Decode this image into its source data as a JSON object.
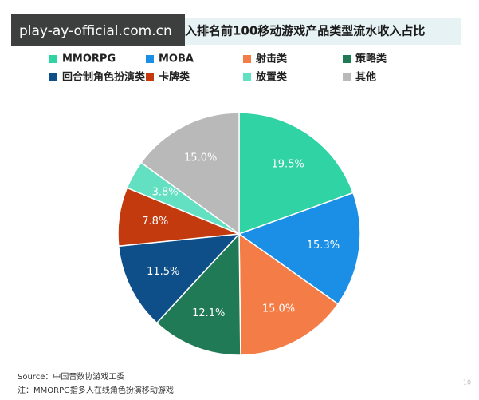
{
  "watermark": "play-ay-official.com.cn",
  "chart_data": {
    "type": "pie",
    "title": "入排名前100移动游戏产品类型流水收入占比",
    "categories": [
      "MMORPG",
      "MOBA",
      "射击类",
      "策略类",
      "回合制角色扮演类",
      "卡牌类",
      "放置类",
      "其他"
    ],
    "values": [
      19.5,
      15.3,
      15.0,
      12.1,
      11.5,
      7.8,
      3.8,
      15.0
    ],
    "value_labels": [
      "19.5%",
      "15.3%",
      "15.0%",
      "12.1%",
      "11.5%",
      "7.8%",
      "3.8%",
      "15.0%"
    ],
    "colors": [
      "#2fd3a4",
      "#1b8ee6",
      "#f47c46",
      "#1f7a55",
      "#0e4f89",
      "#c23a0e",
      "#63e0c2",
      "#b9b9b9"
    ],
    "legend_position": "top",
    "notes": [
      "Source：中国音数协游戏工委",
      "注：MMORPG指多人在线角色扮演移动游戏"
    ],
    "page_number": "10"
  }
}
